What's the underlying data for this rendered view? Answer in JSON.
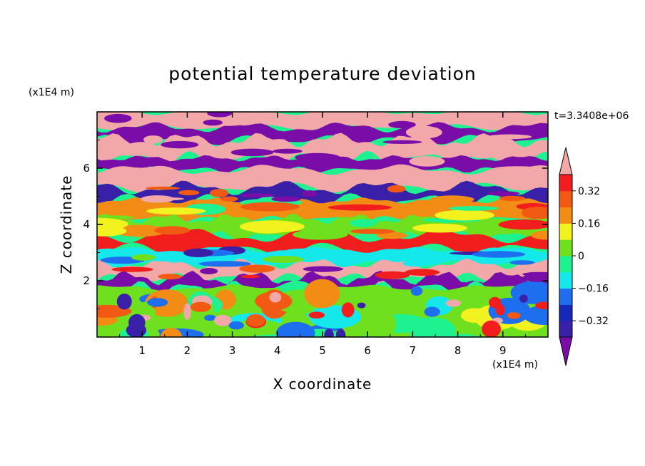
{
  "chart_data": {
    "type": "heatmap",
    "title": "potential temperature deviation",
    "xlabel": "X coordinate",
    "ylabel": "Z coordinate",
    "x_unit": "(x1E4 m)",
    "z_unit": "(x1E4 m)",
    "time_label": "t=3.3408e+06",
    "xlim": [
      0,
      10
    ],
    "ylim": [
      0,
      8
    ],
    "x_ticks": [
      1,
      2,
      3,
      4,
      5,
      6,
      7,
      8,
      9
    ],
    "y_ticks": [
      2,
      4,
      6
    ],
    "colorbar": {
      "levels": [
        -0.4,
        -0.32,
        -0.24,
        -0.16,
        -0.08,
        0,
        0.08,
        0.16,
        0.24,
        0.32,
        0.4
      ],
      "tick_labels": [
        "0.32",
        "0.16",
        "0",
        "−0.16",
        "−0.32"
      ],
      "tick_values": [
        0.32,
        0.16,
        0,
        -0.16,
        -0.32
      ],
      "colors_low_to_high": [
        "#7a0da8",
        "#3a1fa8",
        "#1528b8",
        "#1e6ef0",
        "#15e8ea",
        "#1ef290",
        "#6ee01e",
        "#f2f21e",
        "#f28c14",
        "#f25a14",
        "#f21e1e",
        "#f2a8a8"
      ],
      "extend": "both"
    },
    "bands": [
      {
        "z": [
          7.45,
          8.0
        ],
        "value": 0.45,
        "desc": "pink top"
      },
      {
        "z": [
          7.0,
          7.45
        ],
        "value": -0.45,
        "desc": "purple"
      },
      {
        "z": [
          6.35,
          7.0
        ],
        "value": 0.45,
        "desc": "pink"
      },
      {
        "z": [
          5.95,
          6.35
        ],
        "value": -0.45,
        "desc": "purple"
      },
      {
        "z": [
          5.3,
          5.95
        ],
        "value": 0.45,
        "desc": "pink"
      },
      {
        "z": [
          4.85,
          5.3
        ],
        "value": -0.4,
        "desc": "purple"
      },
      {
        "z": [
          4.2,
          4.85
        ],
        "value": 0.18,
        "desc": "mixed orange/yellow"
      },
      {
        "z": [
          3.6,
          4.2
        ],
        "value": 0.0,
        "desc": "green/cyan"
      },
      {
        "z": [
          3.1,
          3.6
        ],
        "value": 0.38,
        "desc": "pink/red band"
      },
      {
        "z": [
          2.6,
          3.1
        ],
        "value": -0.1,
        "desc": "cyan/blue"
      },
      {
        "z": [
          2.1,
          2.6
        ],
        "value": 0.45,
        "desc": "pink"
      },
      {
        "z": [
          1.75,
          2.1
        ],
        "value": -0.45,
        "desc": "purple"
      },
      {
        "z": [
          0.0,
          1.75
        ],
        "value": 0.04,
        "desc": "turbulent lower layer"
      }
    ]
  }
}
